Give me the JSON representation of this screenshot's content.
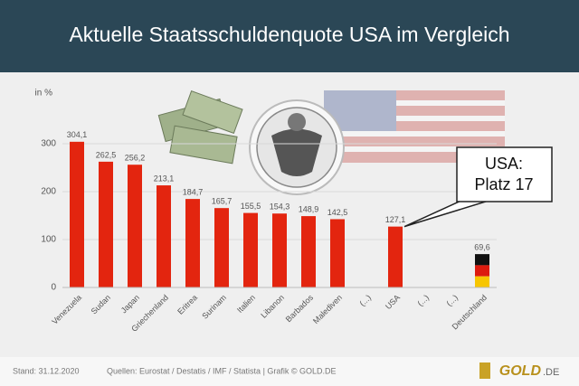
{
  "chart_data": {
    "type": "bar",
    "title": "Aktuelle Staatsschuldenquote USA im Vergleich",
    "y_label": "in %",
    "categories": [
      "Venezuela",
      "Sudan",
      "Japan",
      "Griechenland",
      "Eritrea",
      "Surinam",
      "Italien",
      "Libanon",
      "Barbados",
      "Malediven",
      "(...)",
      "USA",
      "(...)",
      "(...)",
      "Deutschland"
    ],
    "values": [
      304.1,
      262.5,
      256.2,
      213.1,
      184.7,
      165.7,
      155.5,
      154.3,
      148.9,
      142.5,
      null,
      127.1,
      null,
      null,
      69.6
    ],
    "value_labels": [
      "304,1",
      "262,5",
      "256,2",
      "213,1",
      "184,7",
      "165,7",
      "155,5",
      "154,3",
      "148,9",
      "142,5",
      null,
      "127,1",
      null,
      null,
      "69,6"
    ],
    "color": "#e3250f",
    "flag_colors": [
      "#111111",
      "#dd1b0f",
      "#f7c600"
    ],
    "ylim": [
      0,
      350
    ],
    "yticks": [
      0,
      100,
      200,
      300
    ],
    "grid": true,
    "annotation": [
      "USA:",
      "Platz 17"
    ],
    "source": "Stand: 31.12.2020",
    "credit": "Quellen: Eurostat / Destatis / IMF / Statista  |  Grafik © GOLD.DE",
    "logo": [
      "GOLD",
      ".DE"
    ]
  }
}
